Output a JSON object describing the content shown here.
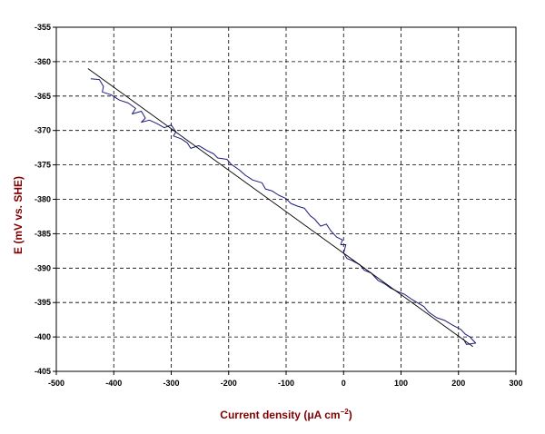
{
  "chart_data": {
    "type": "line",
    "xlabel_parts": [
      "Current density (",
      "μA cm",
      "−2",
      ")"
    ],
    "ylabel": "E (mV vs. SHE)",
    "xlim": [
      -500,
      300
    ],
    "ylim": [
      -405,
      -355
    ],
    "x_ticks": [
      -500,
      -400,
      -300,
      -200,
      -100,
      0,
      100,
      200,
      300
    ],
    "y_ticks": [
      -355,
      -360,
      -365,
      -370,
      -375,
      -380,
      -385,
      -390,
      -395,
      -400,
      -405
    ],
    "x_tick_labels": [
      "-500",
      "-400",
      "-300",
      "-200",
      "-100",
      "0",
      "100",
      "200",
      "300"
    ],
    "y_tick_labels": [
      "-355",
      "-360",
      "-365",
      "-370",
      "-375",
      "-380",
      "-385",
      "-390",
      "-395",
      "-400",
      "-405"
    ],
    "grid": true,
    "colors": {
      "measured": "#1a1a7a",
      "fit": "#000000",
      "title": "#800000",
      "grid": "#000000"
    },
    "series": [
      {
        "style": "measured",
        "points": [
          [
            -440,
            -362.5
          ],
          [
            -425,
            -362.6
          ],
          [
            -418,
            -363.6
          ],
          [
            -420,
            -364.4
          ],
          [
            -405,
            -364.8
          ],
          [
            -390,
            -365.6
          ],
          [
            -375,
            -366.0
          ],
          [
            -362,
            -366.8
          ],
          [
            -368,
            -367.6
          ],
          [
            -352,
            -367.2
          ],
          [
            -345,
            -368.2
          ],
          [
            -352,
            -368.8
          ],
          [
            -338,
            -368.5
          ],
          [
            -325,
            -369.0
          ],
          [
            -312,
            -369.6
          ],
          [
            -300,
            -369.2
          ],
          [
            -292,
            -370.2
          ],
          [
            -296,
            -370.8
          ],
          [
            -283,
            -371.2
          ],
          [
            -272,
            -371.8
          ],
          [
            -266,
            -372.6
          ],
          [
            -252,
            -372.2
          ],
          [
            -238,
            -372.9
          ],
          [
            -226,
            -373.4
          ],
          [
            -219,
            -374.0
          ],
          [
            -203,
            -374.2
          ],
          [
            -196,
            -374.9
          ],
          [
            -182,
            -375.7
          ],
          [
            -171,
            -376.5
          ],
          [
            -158,
            -377.2
          ],
          [
            -142,
            -377.6
          ],
          [
            -136,
            -378.5
          ],
          [
            -124,
            -378.8
          ],
          [
            -113,
            -379.4
          ],
          [
            -100,
            -379.9
          ],
          [
            -92,
            -380.6
          ],
          [
            -80,
            -381.0
          ],
          [
            -68,
            -381.3
          ],
          [
            -58,
            -382.4
          ],
          [
            -50,
            -382.9
          ],
          [
            -40,
            -383.9
          ],
          [
            -30,
            -383.6
          ],
          [
            -22,
            -384.6
          ],
          [
            -12,
            -385.5
          ],
          [
            -2,
            -385.9
          ],
          [
            -5,
            -386.6
          ],
          [
            4,
            -386.6
          ],
          [
            0,
            -387.8
          ],
          [
            6,
            -388.6
          ],
          [
            15,
            -388.9
          ],
          [
            28,
            -389.5
          ],
          [
            36,
            -390.3
          ],
          [
            48,
            -390.7
          ],
          [
            60,
            -391.8
          ],
          [
            70,
            -392.2
          ],
          [
            82,
            -392.9
          ],
          [
            94,
            -393.4
          ],
          [
            106,
            -393.8
          ],
          [
            118,
            -394.5
          ],
          [
            128,
            -395.0
          ],
          [
            140,
            -395.6
          ],
          [
            148,
            -396.4
          ],
          [
            162,
            -397.2
          ],
          [
            176,
            -397.6
          ],
          [
            190,
            -398.3
          ],
          [
            204,
            -398.9
          ],
          [
            212,
            -399.6
          ],
          [
            220,
            -400.0
          ],
          [
            230,
            -400.9
          ],
          [
            214,
            -401.1
          ],
          [
            208,
            -400.2
          ]
        ]
      },
      {
        "style": "fit",
        "points": [
          [
            -445,
            -361.0
          ],
          [
            225,
            -401.4
          ]
        ]
      }
    ]
  }
}
